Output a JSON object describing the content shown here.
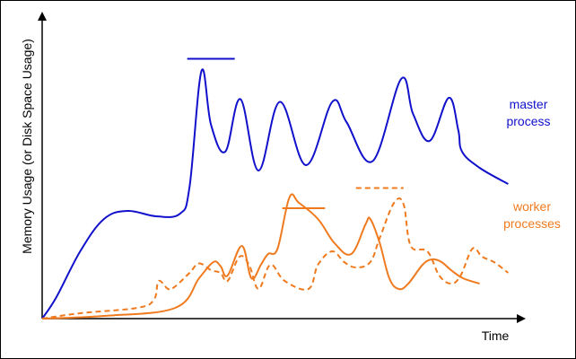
{
  "chart_data": {
    "type": "line",
    "xlabel": "Time",
    "ylabel": "Memory Usage (or Disk Space Usage)",
    "grid": false,
    "colors": {
      "master": "#1111cc",
      "worker": "#f07a1e",
      "axis": "#000000"
    },
    "series_labels": {
      "master_line1": "master",
      "master_line2": "process",
      "worker_line1": "worker",
      "worker_line2": "processes"
    },
    "x_unit": "relative time (0-100)",
    "y_unit": "relative memory (0-100)",
    "series": [
      {
        "name": "master process",
        "style": "solid",
        "color": "#1111cc",
        "points": [
          [
            0,
            0
          ],
          [
            3,
            8
          ],
          [
            8,
            25
          ],
          [
            13,
            37
          ],
          [
            18,
            40
          ],
          [
            24,
            38
          ],
          [
            29,
            39
          ],
          [
            31,
            49
          ],
          [
            33.5,
            92
          ],
          [
            35.5,
            72
          ],
          [
            38.5,
            62
          ],
          [
            41.7,
            81.5
          ],
          [
            45.5,
            55
          ],
          [
            50,
            80.5
          ],
          [
            55.5,
            57
          ],
          [
            61,
            80.5
          ],
          [
            64,
            73
          ],
          [
            69.5,
            58.5
          ],
          [
            75.5,
            89
          ],
          [
            78,
            76
          ],
          [
            81.5,
            66
          ],
          [
            85.5,
            82
          ],
          [
            87.5,
            70
          ],
          [
            88.3,
            62
          ],
          [
            92,
            56
          ],
          [
            98,
            50
          ]
        ],
        "peak_marker": {
          "x_from": 30.5,
          "x_to": 40.5,
          "y": 96.5
        }
      },
      {
        "name": "worker processes",
        "style": "solid",
        "color": "#f07a1e",
        "points": [
          [
            0,
            0
          ],
          [
            13,
            1
          ],
          [
            28,
            4
          ],
          [
            33,
            15
          ],
          [
            36,
            21
          ],
          [
            37.5,
            19.5
          ],
          [
            39,
            16
          ],
          [
            42,
            27
          ],
          [
            44,
            15
          ],
          [
            46,
            20
          ],
          [
            47.5,
            24
          ],
          [
            49.5,
            26
          ],
          [
            52,
            45
          ],
          [
            54,
            43
          ],
          [
            58,
            37
          ],
          [
            61.5,
            28
          ],
          [
            65,
            24
          ],
          [
            68,
            35
          ],
          [
            69,
            37
          ],
          [
            71,
            28
          ],
          [
            73,
            15
          ],
          [
            75,
            11
          ],
          [
            77,
            13
          ],
          [
            80,
            20
          ],
          [
            82,
            22
          ],
          [
            84,
            21
          ],
          [
            86,
            18
          ],
          [
            88.5,
            15
          ],
          [
            92,
            13
          ]
        ],
        "peak_marker": {
          "x_from": 50.5,
          "x_to": 59.5,
          "y": 41
        }
      },
      {
        "name": "worker processes (alternate)",
        "style": "dashed",
        "color": "#f07a1e",
        "points": [
          [
            0,
            0
          ],
          [
            8,
            2
          ],
          [
            20,
            4
          ],
          [
            23.5,
            7
          ],
          [
            24.5,
            14
          ],
          [
            26.5,
            11
          ],
          [
            28,
            12
          ],
          [
            31,
            17
          ],
          [
            33,
            20.5
          ],
          [
            35.5,
            18
          ],
          [
            37.5,
            17
          ],
          [
            39,
            14
          ],
          [
            41.5,
            23
          ],
          [
            43.5,
            20
          ],
          [
            45.5,
            11
          ],
          [
            48,
            20
          ],
          [
            51,
            14
          ],
          [
            56,
            11
          ],
          [
            58,
            20
          ],
          [
            61,
            25
          ],
          [
            63.5,
            21
          ],
          [
            66,
            19
          ],
          [
            69,
            21
          ],
          [
            71,
            30
          ],
          [
            74,
            43
          ],
          [
            76,
            42.5
          ],
          [
            77.5,
            27
          ],
          [
            81,
            25
          ],
          [
            83.5,
            16
          ],
          [
            86,
            13
          ],
          [
            88,
            16
          ],
          [
            90.5,
            26
          ],
          [
            92.5,
            23
          ],
          [
            95,
            21
          ],
          [
            98,
            17
          ]
        ],
        "peak_marker": {
          "x_from": 66,
          "x_to": 76,
          "y": 48.5
        }
      }
    ]
  }
}
